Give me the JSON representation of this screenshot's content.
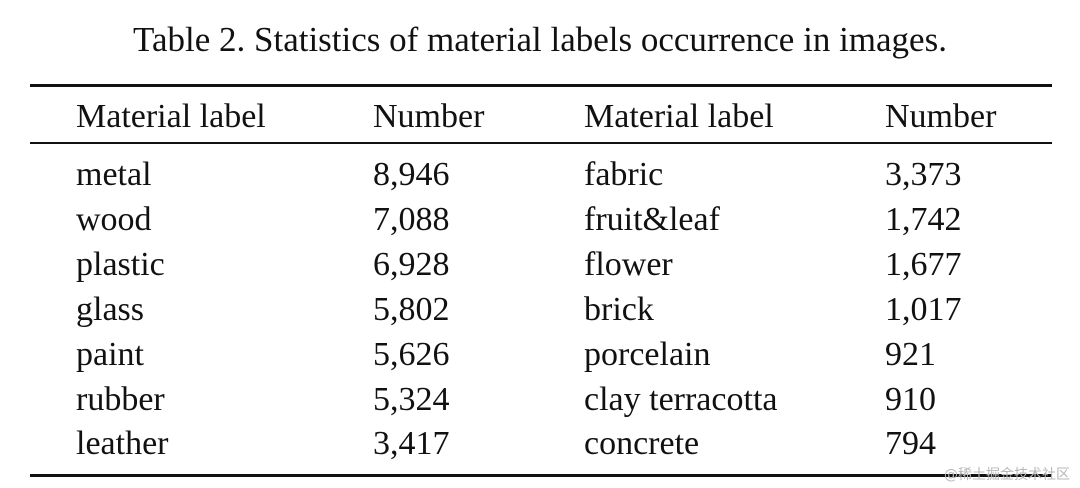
{
  "caption": "Table 2. Statistics of material labels occurrence in images.",
  "headers": [
    "Material label",
    "Number",
    "Material label",
    "Number"
  ],
  "rows": [
    [
      "metal",
      "8,946",
      "fabric",
      "3,373"
    ],
    [
      "wood",
      "7,088",
      "fruit&leaf",
      "1,742"
    ],
    [
      "plastic",
      "6,928",
      "flower",
      "1,677"
    ],
    [
      "glass",
      "5,802",
      "brick",
      "1,017"
    ],
    [
      "paint",
      "5,626",
      "porcelain",
      "921"
    ],
    [
      "rubber",
      "5,324",
      "clay terracotta",
      "910"
    ],
    [
      "leather",
      "3,417",
      "concrete",
      "794"
    ]
  ],
  "watermark": "@稀土掘金技术社区"
}
